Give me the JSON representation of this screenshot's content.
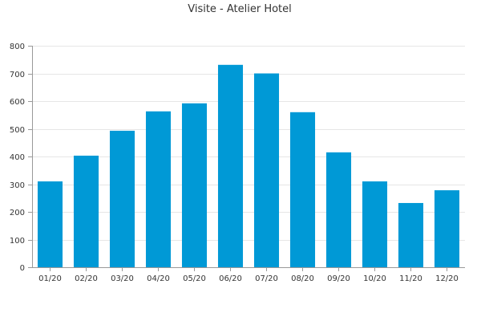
{
  "chart_data": {
    "type": "bar",
    "title": "Visite - Atelier Hotel",
    "xlabel": "",
    "ylabel": "",
    "categories": [
      "01/20",
      "02/20",
      "03/20",
      "04/20",
      "05/20",
      "06/20",
      "07/20",
      "08/20",
      "09/20",
      "10/20",
      "11/20",
      "12/20"
    ],
    "values": [
      310,
      403,
      493,
      563,
      592,
      731,
      700,
      560,
      415,
      310,
      232,
      278
    ],
    "ylim": [
      0,
      800
    ],
    "yticks": [
      0,
      100,
      200,
      300,
      400,
      500,
      600,
      700,
      800
    ],
    "grid": true,
    "legend": "none",
    "bar_color": "#0099d6"
  }
}
